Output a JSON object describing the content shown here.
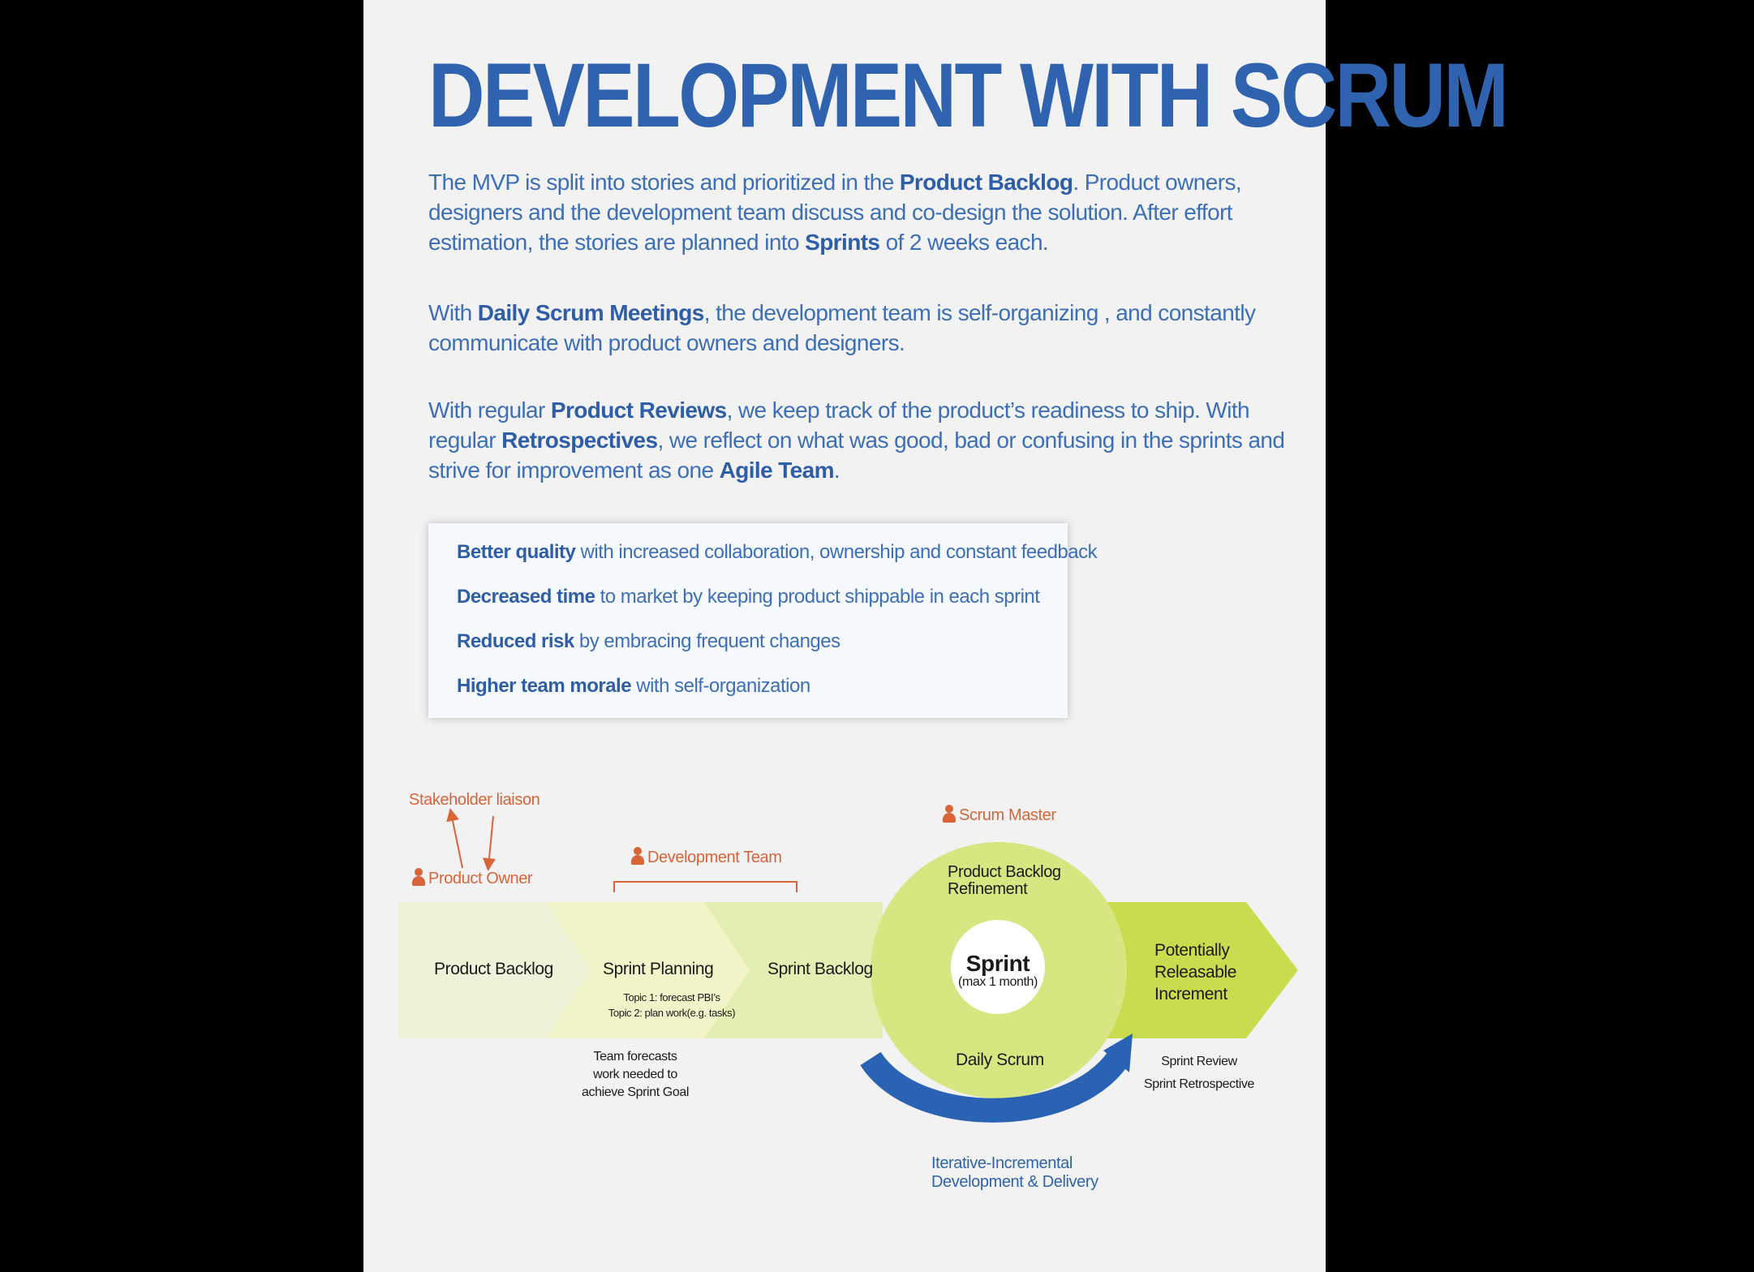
{
  "title": "DEVELOPMENT WITH SCRUM",
  "paragraphs": {
    "p1": [
      "The MVP is split into stories and prioritized in the ",
      "Product Backlog",
      ". Product owners, designers and the development team discuss and co-design the solution. After effort estimation, the stories are planned into ",
      "Sprints",
      " of 2 weeks each."
    ],
    "p2": [
      "With ",
      "Daily Scrum Meetings",
      ", the development team is self-organizing , and constantly communicate with product owners and designers."
    ],
    "p3": [
      "With regular ",
      "Product Reviews",
      ", we keep track of the product’s readiness to ship. With regular ",
      "Retrospectives",
      ", we reflect on what was good, bad or confusing in the sprints and strive for improvement as one ",
      "Agile Team",
      "."
    ]
  },
  "benefits": [
    {
      "bold": "Better quality",
      "text": " with increased collaboration, ownership and constant feedback"
    },
    {
      "bold": "Decreased time",
      "text": " to market by keeping product shippable in each sprint"
    },
    {
      "bold": "Reduced risk",
      "text": " by embracing frequent changes"
    },
    {
      "bold": "Higher team morale",
      "text": " with self-organization"
    }
  ],
  "diagram": {
    "stakeholder_liaison": "Stakeholder liaison",
    "product_owner": "Product Owner",
    "development_team": "Development Team",
    "scrum_master": "Scrum Master",
    "product_backlog": "Product Backlog",
    "sprint_planning": "Sprint Planning",
    "topic1": "Topic 1: forecast PBI’s",
    "topic2": "Topic 2: plan work(e.g. tasks)",
    "team_forecasts": [
      "Team forecasts",
      "work needed to",
      "achieve Sprint Goal"
    ],
    "sprint_backlog": "Sprint Backlog",
    "refinement": [
      "Product Backlog",
      "Refinement"
    ],
    "sprint": "Sprint",
    "sprint_sub": "(max 1 month)",
    "daily_scrum": "Daily Scrum",
    "increment": [
      "Potentially",
      "Releasable",
      "Increment"
    ],
    "sprint_review": "Sprint Review",
    "sprint_retro": "Sprint Retrospective",
    "iterative": [
      "Iterative-Incremental",
      "Development & Delivery"
    ],
    "colors": {
      "title_blue": "#2f63b0",
      "orange": "#d9643a",
      "green_light": "#eef2d8",
      "green_mid": "#e3eeb2",
      "green_circle": "#d7e681",
      "green_dark": "#c8dc4e",
      "arrow_blue": "#2a63b3"
    }
  }
}
